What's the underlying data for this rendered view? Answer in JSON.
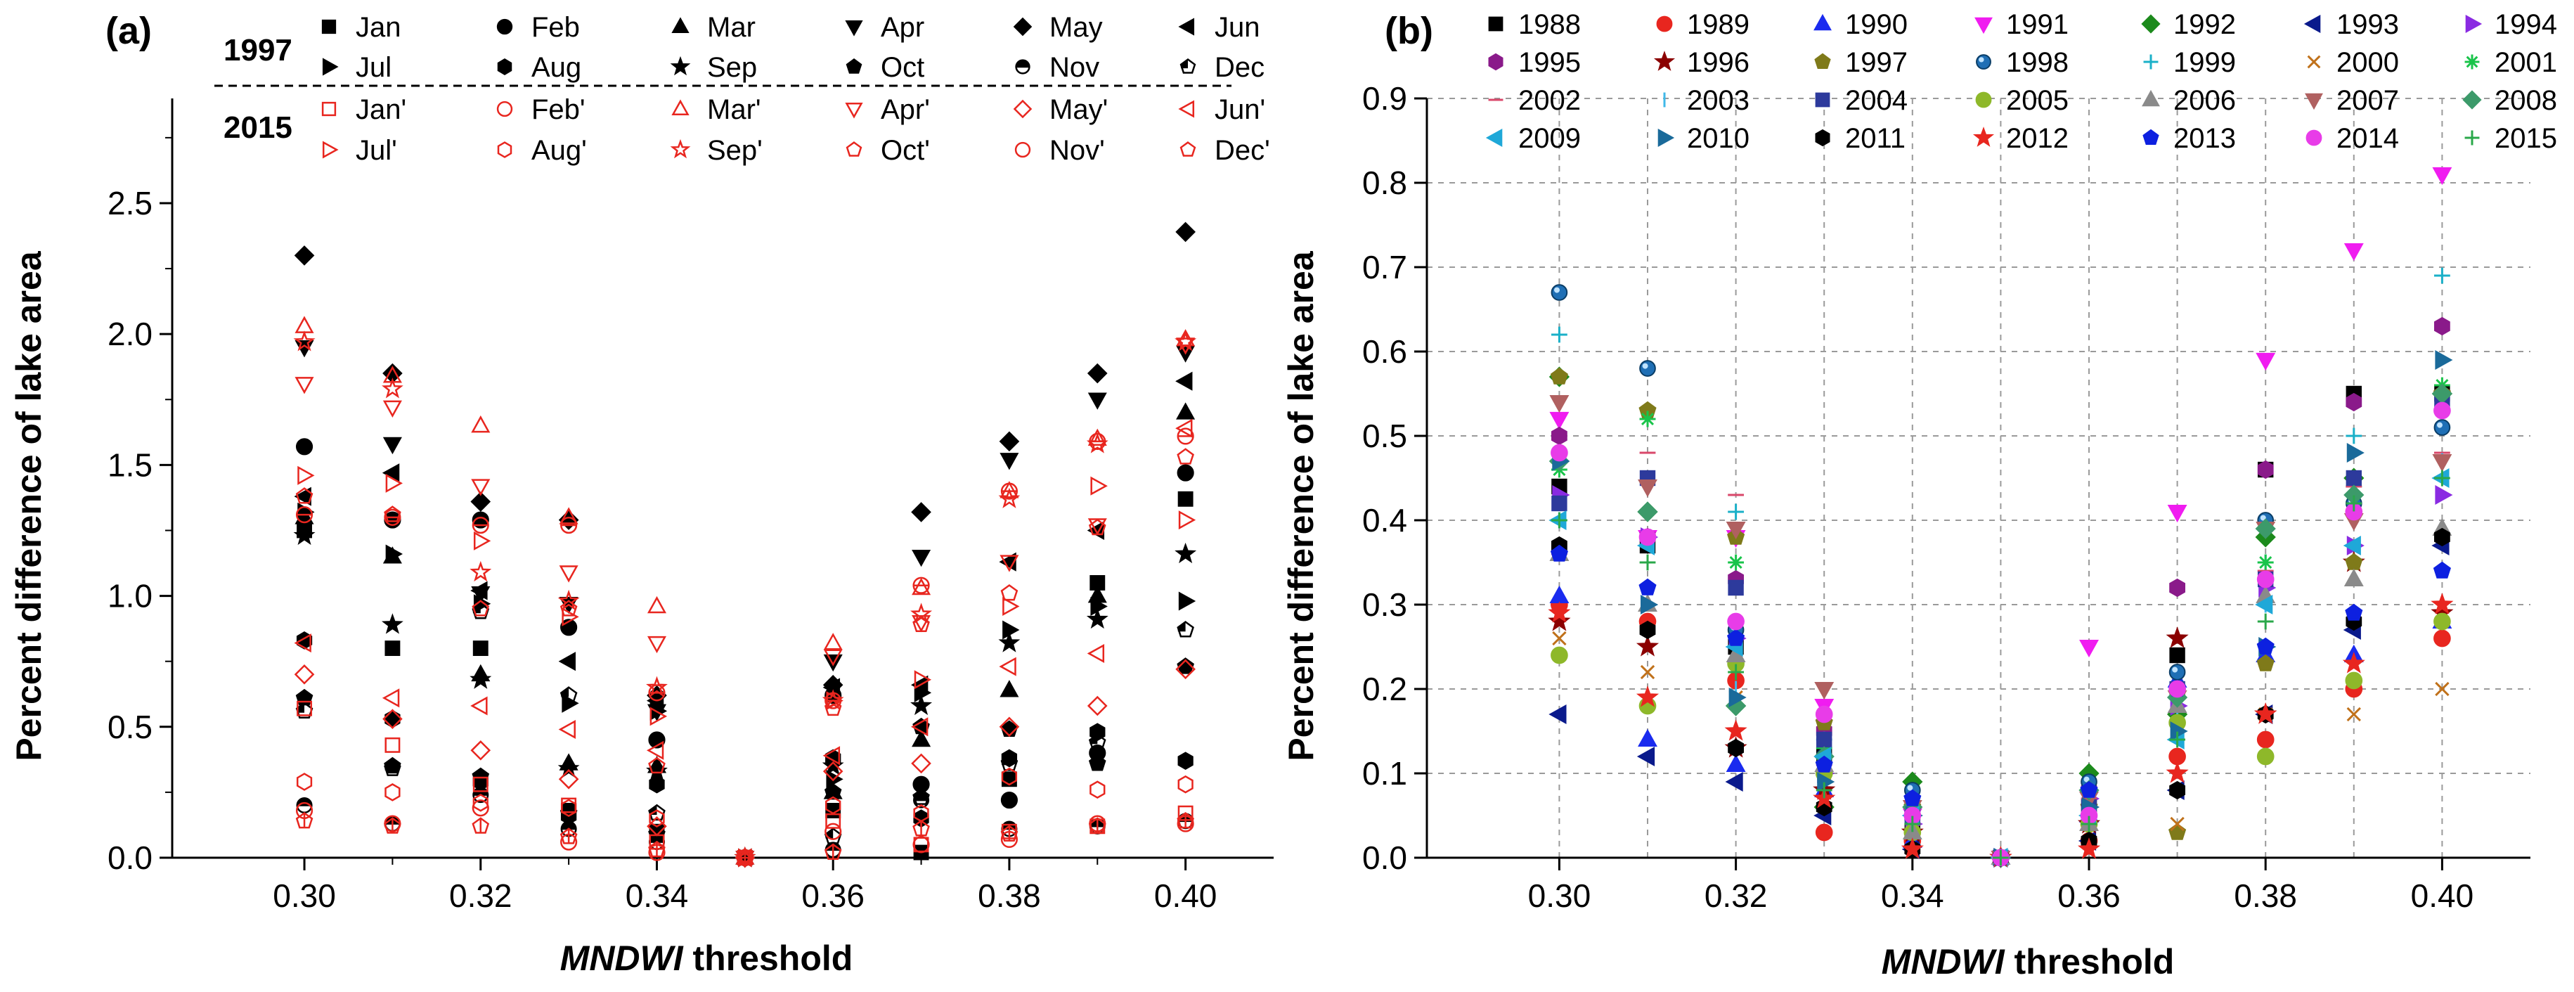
{
  "panels": [
    {
      "label": "(a)",
      "ylabel": "Percent difference of lake area",
      "xlabel_italic": "MNDWI",
      "xlabel_rest": " threshold",
      "xticks": [
        "0.30",
        "0.32",
        "0.34",
        "0.36",
        "0.38",
        "0.40"
      ],
      "yticks": [
        "0.0",
        "0.5",
        "1.0",
        "1.5",
        "2.0",
        "2.5"
      ],
      "legend_group_1997": "1997",
      "legend_group_2015": "2015",
      "legend_1997": [
        "Jan",
        "Feb",
        "Mar",
        "Apr",
        "May",
        "Jun",
        "Jul",
        "Aug",
        "Sep",
        "Oct",
        "Nov",
        "Dec"
      ],
      "legend_2015": [
        "Jan'",
        "Feb'",
        "Mar'",
        "Apr'",
        "May'",
        "Jun'",
        "Jul'",
        "Aug'",
        "Sep'",
        "Oct'",
        "Nov'",
        "Dec'"
      ]
    },
    {
      "label": "(b)",
      "ylabel": "Percent difference of lake area",
      "xlabel_italic": "MNDWI",
      "xlabel_rest": " threshold",
      "xticks": [
        "0.30",
        "0.32",
        "0.34",
        "0.36",
        "0.38",
        "0.40"
      ],
      "yticks": [
        "0.0",
        "0.1",
        "0.2",
        "0.3",
        "0.4",
        "0.5",
        "0.6",
        "0.7",
        "0.8",
        "0.9"
      ],
      "legend_years": [
        "1988",
        "1989",
        "1990",
        "1991",
        "1992",
        "1993",
        "1994",
        "1995",
        "1996",
        "1997",
        "1998",
        "1999",
        "2000",
        "2001",
        "2002",
        "2003",
        "2004",
        "2005",
        "2006",
        "2007",
        "2008",
        "2009",
        "2010",
        "2011",
        "2012",
        "2013",
        "2014",
        "2015"
      ]
    }
  ],
  "chart_data": [
    {
      "type": "scatter",
      "title": "(a)",
      "xlabel": "MNDWI threshold",
      "ylabel": "Percent difference of lake area",
      "xlim": [
        0.285,
        0.41
      ],
      "ylim": [
        0,
        2.9
      ],
      "x": [
        0.3,
        0.31,
        0.32,
        0.33,
        0.34,
        0.35,
        0.36,
        0.37,
        0.38,
        0.39,
        0.4
      ],
      "series": [
        {
          "name": "Jan",
          "values": [
            1.25,
            0.8,
            0.8,
            0.18,
            0.1,
            0.0,
            0.18,
            0.02,
            0.3,
            1.05,
            1.37
          ]
        },
        {
          "name": "Feb",
          "values": [
            1.57,
            1.29,
            1.29,
            0.88,
            0.45,
            0.0,
            0.62,
            0.28,
            0.22,
            0.4,
            1.47
          ]
        },
        {
          "name": "Mar",
          "values": [
            1.3,
            1.15,
            0.7,
            0.36,
            0.35,
            0.0,
            0.25,
            0.45,
            0.64,
            1.0,
            1.7
          ]
        },
        {
          "name": "Apr",
          "values": [
            1.95,
            1.58,
            1.01,
            0.97,
            0.56,
            0.0,
            0.75,
            1.15,
            1.52,
            1.75,
            1.93
          ]
        },
        {
          "name": "May",
          "values": [
            2.3,
            1.85,
            1.36,
            1.29,
            0.62,
            0.0,
            0.66,
            1.32,
            1.59,
            1.85,
            2.39
          ]
        },
        {
          "name": "Jun",
          "values": [
            1.38,
            1.47,
            1.02,
            0.75,
            0.6,
            0.0,
            0.65,
            0.66,
            1.13,
            1.25,
            1.82
          ]
        },
        {
          "name": "Jul",
          "values": [
            1.32,
            1.16,
            0.97,
            0.59,
            0.56,
            0.0,
            0.3,
            0.63,
            0.87,
            0.96,
            0.98
          ]
        },
        {
          "name": "Aug",
          "values": [
            0.83,
            0.53,
            0.29,
            0.16,
            0.28,
            0.0,
            0.38,
            0.15,
            0.38,
            0.48,
            0.37
          ]
        },
        {
          "name": "Sep",
          "values": [
            1.23,
            0.89,
            0.68,
            0.34,
            0.33,
            0.0,
            0.35,
            0.58,
            0.82,
            0.91,
            1.16
          ]
        },
        {
          "name": "Oct",
          "values": [
            0.61,
            0.35,
            0.31,
            0.17,
            0.09,
            0.0,
            0.25,
            0.5,
            0.49,
            0.36,
            0.73
          ]
        },
        {
          "name": "Nov",
          "values": [
            0.2,
            0.13,
            0.24,
            0.11,
            0.06,
            0.0,
            0.03,
            0.22,
            0.11,
            0.12,
            0.14
          ]
        },
        {
          "name": "Dec",
          "values": [
            0.56,
            0.34,
            0.94,
            0.62,
            0.17,
            0.0,
            0.08,
            0.23,
            0.36,
            0.44,
            0.87
          ]
        },
        {
          "name": "Jan'",
          "values": [
            0.57,
            0.43,
            0.28,
            0.2,
            0.06,
            0.0,
            0.14,
            0.05,
            0.1,
            0.12,
            0.17
          ]
        },
        {
          "name": "Feb'",
          "values": [
            0.18,
            0.13,
            0.19,
            0.06,
            0.02,
            0.0,
            0.1,
            0.05,
            0.07,
            0.13,
            0.13
          ]
        },
        {
          "name": "Mar'",
          "values": [
            2.03,
            1.84,
            1.65,
            1.3,
            0.96,
            0.0,
            0.82,
            1.03,
            1.4,
            1.6,
            1.98
          ]
        },
        {
          "name": "Apr'",
          "values": [
            1.81,
            1.72,
            1.42,
            1.09,
            0.82,
            0.0,
            0.77,
            0.9,
            1.13,
            1.27,
            1.96
          ]
        },
        {
          "name": "May'",
          "values": [
            0.7,
            0.53,
            0.41,
            0.3,
            0.12,
            0.0,
            0.33,
            0.36,
            0.5,
            0.58,
            0.72
          ]
        },
        {
          "name": "Jun'",
          "values": [
            0.82,
            0.61,
            0.58,
            0.49,
            0.41,
            0.0,
            0.39,
            0.5,
            0.73,
            0.78,
            1.64
          ]
        },
        {
          "name": "Jul'",
          "values": [
            1.46,
            1.43,
            1.21,
            0.92,
            0.54,
            0.0,
            0.6,
            0.68,
            0.96,
            1.42,
            1.29
          ]
        },
        {
          "name": "Aug'",
          "values": [
            0.29,
            0.25,
            0.21,
            0.19,
            0.15,
            0.0,
            0.2,
            0.17,
            0.31,
            0.26,
            0.28
          ]
        },
        {
          "name": "Sep'",
          "values": [
            1.97,
            1.79,
            1.09,
            0.98,
            0.65,
            0.0,
            0.6,
            0.93,
            1.37,
            1.58,
            1.97
          ]
        },
        {
          "name": "Oct'",
          "values": [
            1.38,
            1.31,
            0.95,
            0.95,
            0.35,
            0.0,
            0.57,
            0.89,
            1.01,
            1.26,
            1.53
          ]
        },
        {
          "name": "Nov'",
          "values": [
            1.31,
            1.3,
            1.27,
            1.27,
            0.63,
            0.0,
            0.6,
            1.04,
            1.4,
            1.59,
            1.61
          ]
        },
        {
          "name": "Dec'",
          "values": [
            0.14,
            0.12,
            0.12,
            0.08,
            0.03,
            0.0,
            0.02,
            0.11,
            0.09,
            0.12,
            0.14
          ]
        }
      ]
    },
    {
      "type": "scatter",
      "title": "(b)",
      "xlabel": "MNDWI threshold",
      "ylabel": "Percent difference of lake area",
      "xlim": [
        0.285,
        0.41
      ],
      "ylim": [
        0,
        0.9
      ],
      "grid": true,
      "x": [
        0.3,
        0.31,
        0.32,
        0.33,
        0.34,
        0.35,
        0.36,
        0.37,
        0.38,
        0.39,
        0.4
      ],
      "series": [
        {
          "name": "1988",
          "values": [
            0.44,
            0.37,
            0.25,
            0.12,
            0.03,
            0.0,
            0.06,
            0.24,
            0.46,
            0.55,
            0.55
          ]
        },
        {
          "name": "1989",
          "values": [
            0.3,
            0.28,
            0.21,
            0.03,
            0.02,
            0.0,
            0.02,
            0.12,
            0.14,
            0.2,
            0.26
          ]
        },
        {
          "name": "1990",
          "values": [
            0.31,
            0.14,
            0.11,
            0.08,
            0.02,
            0.0,
            0.05,
            0.21,
            0.24,
            0.24,
            0.28
          ]
        },
        {
          "name": "1991",
          "values": [
            0.52,
            0.38,
            0.38,
            0.18,
            0.05,
            0.0,
            0.25,
            0.41,
            0.59,
            0.72,
            0.81
          ]
        },
        {
          "name": "1992",
          "values": [
            0.57,
            0.41,
            0.18,
            0.06,
            0.09,
            0.0,
            0.1,
            0.17,
            0.38,
            0.45,
            0.55
          ]
        },
        {
          "name": "1993",
          "values": [
            0.17,
            0.12,
            0.09,
            0.05,
            0.01,
            0.0,
            0.02,
            0.08,
            0.17,
            0.27,
            0.37
          ]
        },
        {
          "name": "1994",
          "values": [
            0.43,
            0.38,
            0.26,
            0.1,
            0.04,
            0.0,
            0.07,
            0.18,
            0.32,
            0.37,
            0.43
          ]
        },
        {
          "name": "1995",
          "values": [
            0.5,
            0.38,
            0.33,
            0.15,
            0.05,
            0.0,
            0.08,
            0.32,
            0.46,
            0.54,
            0.63
          ]
        },
        {
          "name": "1996",
          "values": [
            0.28,
            0.25,
            0.13,
            0.08,
            0.03,
            0.0,
            0.04,
            0.26,
            0.17,
            0.35,
            0.29
          ]
        },
        {
          "name": "1997",
          "values": [
            0.57,
            0.53,
            0.38,
            0.16,
            0.06,
            0.0,
            0.06,
            0.03,
            0.23,
            0.35,
            0.55
          ]
        },
        {
          "name": "1998",
          "values": [
            0.67,
            0.58,
            0.27,
            0.12,
            0.08,
            0.0,
            0.09,
            0.22,
            0.4,
            0.42,
            0.51
          ]
        },
        {
          "name": "1999",
          "values": [
            0.62,
            0.52,
            0.41,
            0.14,
            0.06,
            0.0,
            0.05,
            0.19,
            0.35,
            0.5,
            0.69
          ]
        },
        {
          "name": "2000",
          "values": [
            0.26,
            0.22,
            0.19,
            0.1,
            0.04,
            0.0,
            0.03,
            0.04,
            0.17,
            0.17,
            0.2
          ]
        },
        {
          "name": "2001",
          "values": [
            0.46,
            0.52,
            0.35,
            0.13,
            0.05,
            0.0,
            0.04,
            0.16,
            0.35,
            0.44,
            0.56
          ]
        },
        {
          "name": "2002",
          "values": [
            0.36,
            0.48,
            0.43,
            0.11,
            0.04,
            0.0,
            0.07,
            0.14,
            0.34,
            0.44,
            0.48
          ]
        },
        {
          "name": "2003",
          "values": [
            0.4,
            0.31,
            0.2,
            0.11,
            0.04,
            0.0,
            0.05,
            0.17,
            0.3,
            0.43,
            0.47
          ]
        },
        {
          "name": "2004",
          "values": [
            0.42,
            0.45,
            0.32,
            0.14,
            0.05,
            0.0,
            0.06,
            0.2,
            0.33,
            0.45,
            0.54
          ]
        },
        {
          "name": "2005",
          "values": [
            0.24,
            0.18,
            0.23,
            0.1,
            0.03,
            0.0,
            0.04,
            0.16,
            0.12,
            0.21,
            0.28
          ]
        },
        {
          "name": "2006",
          "values": [
            0.36,
            0.3,
            0.24,
            0.11,
            0.03,
            0.0,
            0.04,
            0.18,
            0.31,
            0.33,
            0.39
          ]
        },
        {
          "name": "2007",
          "values": [
            0.54,
            0.44,
            0.39,
            0.2,
            0.06,
            0.0,
            0.07,
            0.19,
            0.39,
            0.4,
            0.47
          ]
        },
        {
          "name": "2008",
          "values": [
            0.47,
            0.41,
            0.18,
            0.12,
            0.06,
            0.0,
            0.08,
            0.19,
            0.39,
            0.43,
            0.55
          ]
        },
        {
          "name": "2009",
          "values": [
            0.4,
            0.37,
            0.25,
            0.12,
            0.05,
            0.0,
            0.05,
            0.14,
            0.3,
            0.37,
            0.45
          ]
        },
        {
          "name": "2010",
          "values": [
            0.47,
            0.3,
            0.19,
            0.09,
            0.05,
            0.0,
            0.06,
            0.15,
            0.25,
            0.48,
            0.59
          ]
        },
        {
          "name": "2011",
          "values": [
            0.37,
            0.27,
            0.13,
            0.06,
            0.01,
            0.0,
            0.02,
            0.08,
            0.17,
            0.28,
            0.38
          ]
        },
        {
          "name": "2012",
          "values": [
            0.29,
            0.19,
            0.15,
            0.07,
            0.01,
            0.0,
            0.01,
            0.1,
            0.17,
            0.23,
            0.3
          ]
        },
        {
          "name": "2013",
          "values": [
            0.36,
            0.32,
            0.26,
            0.11,
            0.07,
            0.0,
            0.08,
            0.2,
            0.25,
            0.29,
            0.34
          ]
        },
        {
          "name": "2014",
          "values": [
            0.48,
            0.38,
            0.28,
            0.17,
            0.05,
            0.0,
            0.05,
            0.2,
            0.33,
            0.41,
            0.53
          ]
        },
        {
          "name": "2015",
          "values": [
            0.4,
            0.35,
            0.22,
            0.08,
            0.04,
            0.0,
            0.04,
            0.14,
            0.28,
            0.42,
            0.45
          ]
        }
      ]
    }
  ]
}
